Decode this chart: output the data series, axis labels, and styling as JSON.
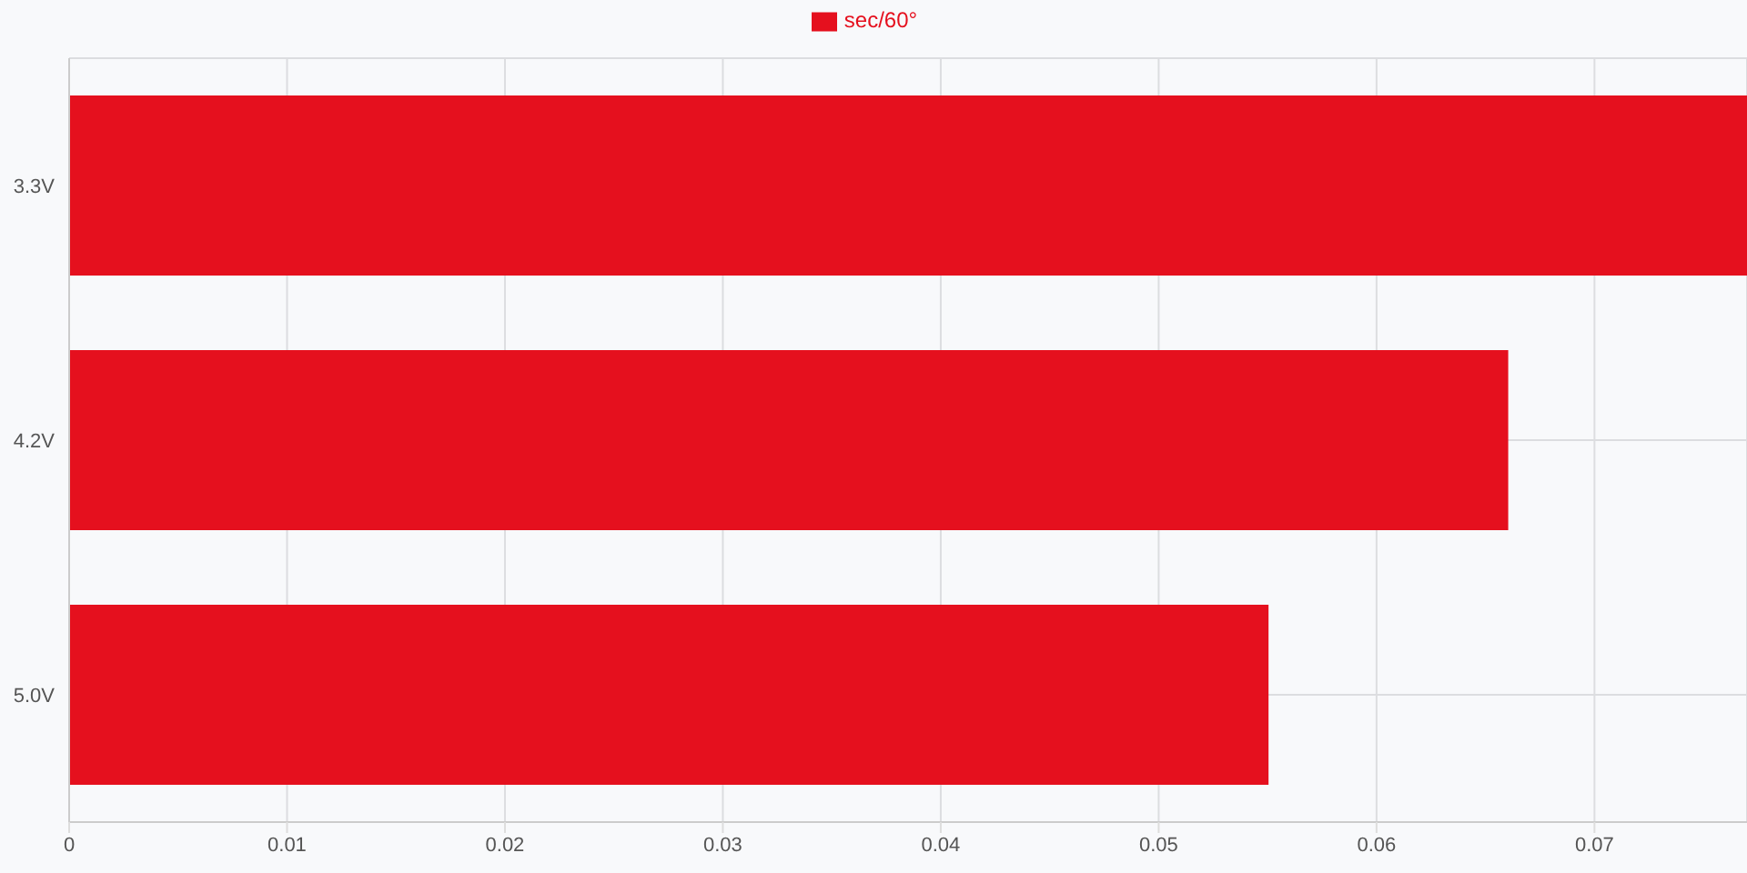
{
  "chart_data": {
    "type": "bar",
    "orientation": "horizontal",
    "categories": [
      "3.3V",
      "4.2V",
      "5.0V"
    ],
    "series": [
      {
        "name": "sec/60°",
        "color": "#e5101e",
        "values": [
          0.077,
          0.066,
          0.055
        ]
      }
    ],
    "xlim": [
      0,
      0.077
    ],
    "xticks": [
      0,
      0.01,
      0.02,
      0.03,
      0.04,
      0.05,
      0.06,
      0.07
    ],
    "grid": true,
    "legend": "top"
  }
}
